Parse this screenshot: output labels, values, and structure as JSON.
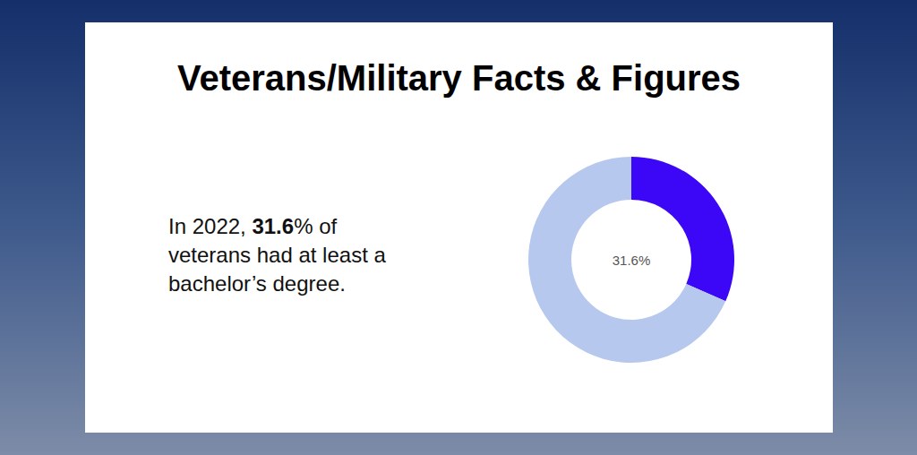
{
  "chart_data": {
    "type": "pie",
    "title": "Veterans/Military Facts & Figures",
    "annotation": [
      "In 2022, ",
      "31.6",
      "% of veterans had at least a bachelor’s degree."
    ],
    "values": [
      31.6,
      68.4
    ],
    "value_labels": [
      "31.6%",
      null
    ],
    "colors": [
      "#3c07f7",
      "#b6c8ee"
    ],
    "data_labels": true
  }
}
